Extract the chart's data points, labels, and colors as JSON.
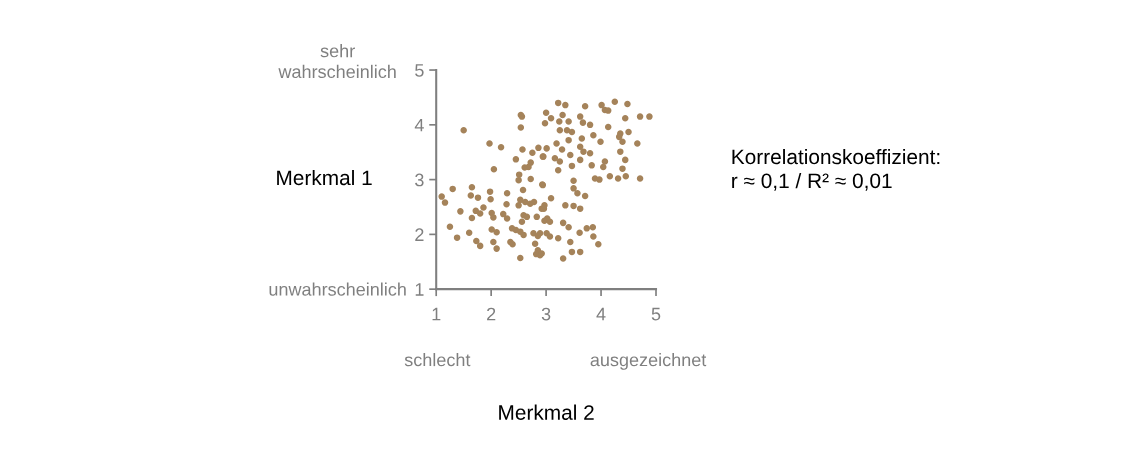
{
  "chart_data": {
    "type": "scatter",
    "xlabel": "Merkmal 2",
    "ylabel": "Merkmal 1",
    "xlim": [
      1,
      5
    ],
    "ylim": [
      1,
      5
    ],
    "xticks": [
      1,
      2,
      3,
      4,
      5
    ],
    "yticks": [
      1,
      2,
      3,
      4,
      5
    ],
    "grid": false,
    "marker": "circle",
    "legend": false,
    "annotations": [
      "sehr\nwahrscheinlich",
      "unwahrscheinlich",
      "schlecht",
      "ausgezeichnet",
      "Korrelationskoeffizient:\nr ≈ 0,1 / R² ≈ 0,01"
    ],
    "series": [
      {
        "color": "#a5835a",
        "x": [
          2.54,
          2.56,
          2.54,
          1.5,
          1.97,
          2.18,
          2.57,
          2.75,
          2.86,
          2.95,
          2.45,
          2.72,
          2.68,
          2.61,
          2.05,
          2.51,
          2.5,
          2.72,
          2.93,
          1.3,
          1.65,
          2.58,
          1.1,
          1.16,
          1.63,
          1.76,
          1.98,
          1.99,
          2.29,
          2.53,
          2.62,
          2.71,
          2.78,
          2.28,
          2.5,
          2.97,
          2.92,
          1.86,
          1.72,
          1.44,
          1.8,
          2.01,
          2.22,
          2.29,
          2.04,
          1.65,
          2.59,
          2.65,
          2.83,
          2.56,
          2.97,
          1.25,
          1.38,
          1.6,
          2.01,
          2.1,
          2.38,
          2.45,
          2.53,
          2.59,
          2.77,
          2.85,
          3.01,
          1.73,
          1.8,
          2.04,
          2.1,
          2.35,
          2.39,
          2.8,
          2.85,
          2.82,
          2.89,
          2.53,
          3.22,
          3.35,
          3.71,
          4.01,
          4.25,
          4.48,
          4.07,
          4.13,
          3.0,
          3.3,
          3.62,
          3.09,
          2.98,
          3.24,
          3.41,
          3.67,
          3.8,
          4.44,
          4.71,
          4.88,
          4.13,
          3.25,
          3.38,
          3.47,
          4.35,
          4.5,
          3.65,
          3.86,
          3.99,
          4.33,
          4.39,
          4.66,
          3.19,
          3.41,
          3.01,
          3.29,
          3.62,
          3.68,
          3.8,
          4.35,
          2.94,
          3.16,
          3.44,
          3.25,
          3.62,
          3.83,
          4.07,
          4.04,
          4.44,
          3.22,
          3.47,
          4.39,
          4.16,
          3.89,
          3.97,
          4.31,
          4.45,
          4.71,
          2.94,
          3.5,
          3.5,
          3.57,
          3.71,
          3.09,
          3.35,
          3.5,
          3.62,
          2.96,
          3.02,
          3.07,
          3.31,
          3.41,
          3.61,
          3.74,
          3.85,
          3.86,
          3.95,
          3.44,
          2.89,
          3.07,
          3.22,
          3.47,
          3.62,
          3.31,
          2.92
        ],
        "values": [
          4.18,
          4.15,
          3.95,
          3.9,
          3.66,
          3.59,
          3.55,
          3.49,
          3.58,
          3.42,
          3.37,
          3.31,
          3.23,
          3.22,
          3.19,
          3.09,
          2.99,
          3.01,
          2.91,
          2.83,
          2.86,
          2.81,
          2.69,
          2.58,
          2.71,
          2.67,
          2.78,
          2.64,
          2.75,
          2.63,
          2.59,
          2.56,
          2.59,
          2.55,
          2.53,
          2.53,
          2.47,
          2.49,
          2.43,
          2.42,
          2.38,
          2.39,
          2.37,
          2.29,
          2.31,
          2.3,
          2.35,
          2.32,
          2.32,
          2.23,
          2.25,
          2.14,
          1.94,
          2.03,
          2.09,
          2.04,
          2.11,
          2.08,
          2.05,
          1.99,
          2.02,
          1.97,
          2.02,
          1.88,
          1.79,
          1.86,
          1.74,
          1.86,
          1.82,
          1.83,
          1.71,
          1.64,
          1.62,
          1.57,
          4.4,
          4.36,
          4.34,
          4.36,
          4.42,
          4.38,
          4.27,
          4.26,
          4.22,
          4.18,
          4.15,
          4.12,
          4.03,
          4.06,
          4.06,
          4.04,
          4.0,
          4.12,
          4.15,
          4.15,
          3.96,
          3.9,
          3.9,
          3.87,
          3.84,
          3.87,
          3.75,
          3.81,
          3.69,
          3.78,
          3.69,
          3.66,
          3.66,
          3.72,
          3.57,
          3.55,
          3.6,
          3.51,
          3.48,
          3.51,
          3.42,
          3.39,
          3.45,
          3.33,
          3.36,
          3.26,
          3.33,
          3.23,
          3.36,
          3.17,
          3.25,
          3.2,
          3.06,
          3.02,
          3.0,
          3.02,
          3.06,
          3.02,
          2.9,
          2.98,
          2.84,
          2.75,
          2.7,
          2.66,
          2.53,
          2.52,
          2.47,
          2.47,
          2.29,
          2.23,
          2.21,
          2.13,
          2.03,
          2.11,
          2.13,
          1.96,
          1.82,
          1.86,
          2.02,
          1.96,
          1.93,
          1.68,
          1.68,
          1.56,
          1.65
        ]
      }
    ]
  }
}
